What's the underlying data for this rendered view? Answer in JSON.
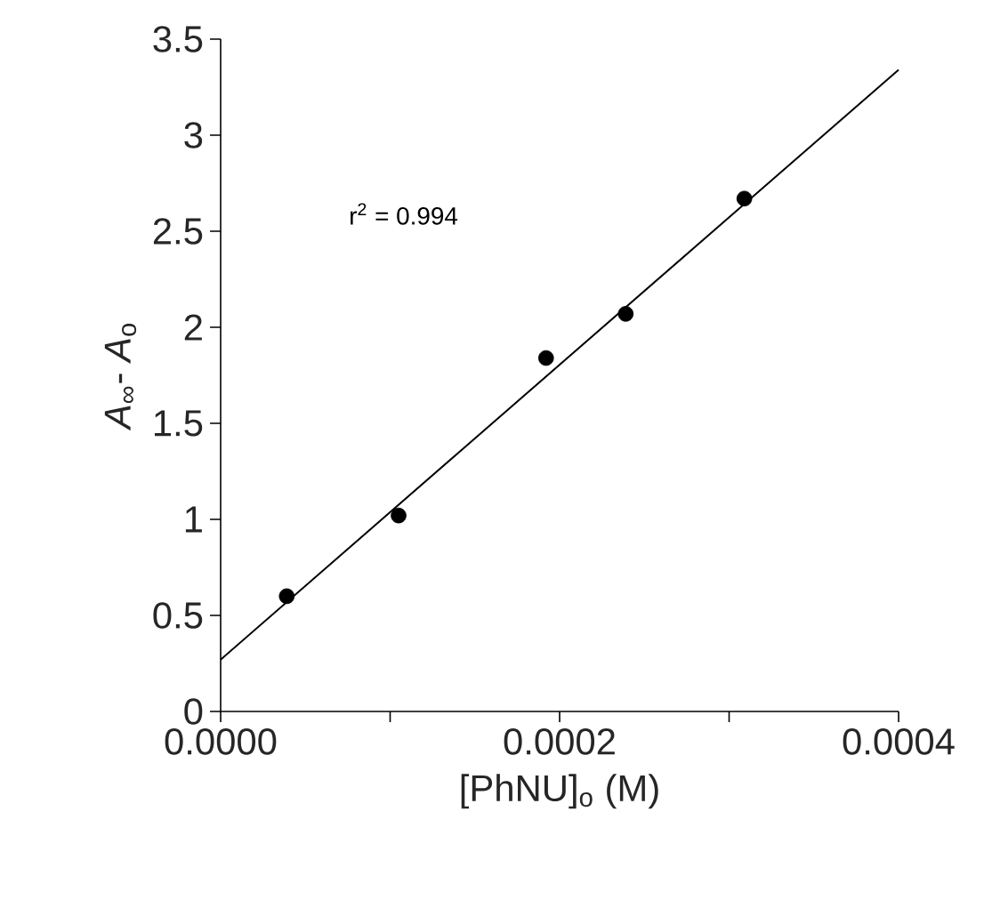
{
  "chart_data": {
    "type": "scatter",
    "xlabel": "[PhNU]$_{o}$ (M)",
    "ylabel": "*A*$_{∞}$- *A*$_{o}$",
    "series": [
      {
        "type": "scatter",
        "color": "#000000",
        "marker": "circle",
        "x": [
          3.9e-05,
          0.000105,
          0.000192,
          0.000239,
          0.000309
        ],
        "values": [
          0.6,
          1.02,
          1.84,
          2.07,
          2.67
        ]
      },
      {
        "type": "line",
        "color": "#000000",
        "x": [
          0,
          0.0004
        ],
        "values": [
          0.27,
          3.34
        ]
      }
    ],
    "annotations": [
      "r$^{2}$ = 0.994"
    ],
    "xlim": [
      0,
      0.0004
    ],
    "ylim": [
      0,
      3.5
    ],
    "xticks": [
      {
        "value": 0,
        "label": "0.0000"
      },
      {
        "value": 0.0001,
        "label": null
      },
      {
        "value": 0.0002,
        "label": "0.0002"
      },
      {
        "value": 0.0003,
        "label": null
      },
      {
        "value": 0.0004,
        "label": "0.0004"
      }
    ],
    "yticks": [
      0,
      0.5,
      1,
      1.5,
      2,
      2.5,
      3,
      3.5
    ]
  }
}
